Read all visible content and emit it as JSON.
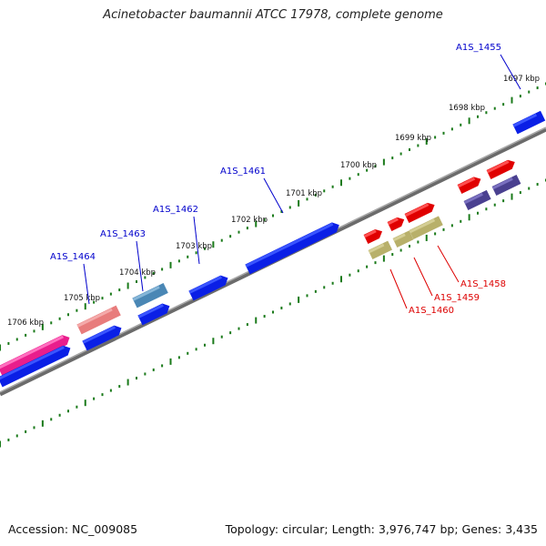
{
  "title": "Acinetobacter baumannii ATCC 17978, complete genome",
  "footer": {
    "accession": "Accession: NC_009085",
    "summary": "Topology: circular; Length: 3,976,747 bp; Genes: 3,435"
  },
  "colors": {
    "backbone": "#808080",
    "tick": "#1a7a1a",
    "kbp_label": "#111111",
    "forward_label": "#0000cc",
    "reverse_label": "#dd0000"
  },
  "kbp_labels": [
    "1697 kbp",
    "1698 kbp",
    "1699 kbp",
    "1700 kbp",
    "1701 kbp",
    "1702 kbp",
    "1703 kbp",
    "1704 kbp",
    "1705 kbp",
    "1706 kbp"
  ],
  "gene_labels": [
    "A1S_1455",
    "A1S_1461",
    "A1S_1462",
    "A1S_1463",
    "A1S_1464",
    "A1S_1458",
    "A1S_1459",
    "A1S_1460"
  ]
}
